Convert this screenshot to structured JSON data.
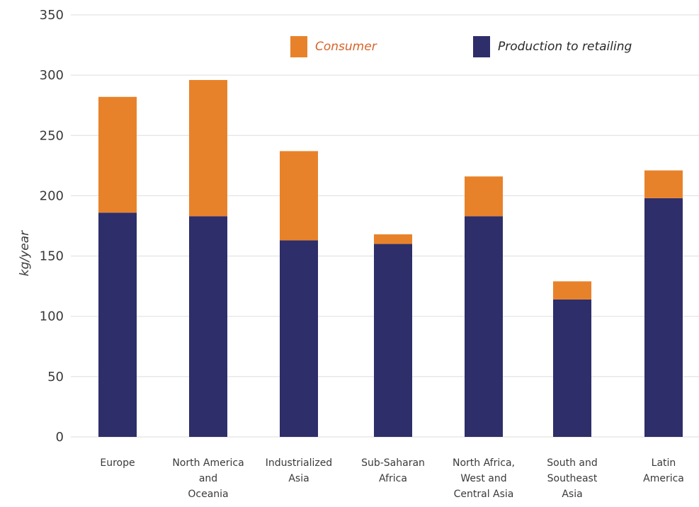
{
  "chart_data": {
    "type": "bar",
    "stacked": true,
    "title": "",
    "xlabel": "",
    "ylabel": "kg/year",
    "ylim": [
      0,
      350
    ],
    "yticks": [
      0,
      50,
      100,
      150,
      200,
      250,
      300,
      350
    ],
    "grid": true,
    "legend_position": "top",
    "categories": [
      "Europe",
      "North America and Oceania",
      "Industrialized Asia",
      "Sub-Saharan Africa",
      "North Africa, West and Central Asia",
      "South and Southeast Asia",
      "Latin America"
    ],
    "category_lines": [
      [
        "Europe"
      ],
      [
        "North America",
        "and",
        "Oceania"
      ],
      [
        "Industrialized",
        "Asia"
      ],
      [
        "Sub-Saharan",
        "Africa"
      ],
      [
        "North Africa,",
        "West and",
        "Central Asia"
      ],
      [
        "South and",
        "Southeast",
        "Asia"
      ],
      [
        "Latin",
        "America"
      ]
    ],
    "series": [
      {
        "name": "Production to retailing",
        "color": "#2e2e6a",
        "values": [
          186,
          183,
          163,
          160,
          183,
          114,
          198
        ]
      },
      {
        "name": "Consumer",
        "color": "#e8822a",
        "values": [
          96,
          113,
          74,
          8,
          33,
          15,
          23
        ]
      }
    ]
  },
  "legend": {
    "consumer_label": "Consumer",
    "production_label": "Production to retailing",
    "consumer_text_color": "#d8632a",
    "production_text_color": "#2a2a2a"
  }
}
